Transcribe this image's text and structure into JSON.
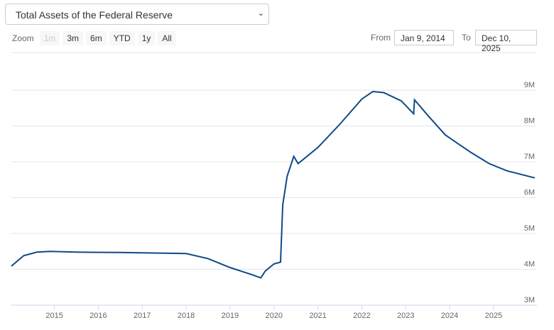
{
  "selector": {
    "value": "Total Assets of the Federal Reserve"
  },
  "zoom": {
    "label": "Zoom",
    "buttons": [
      "1m",
      "3m",
      "6m",
      "YTD",
      "1y",
      "All"
    ]
  },
  "range": {
    "from_label": "From",
    "from": "Jan 9, 2014",
    "to_label": "To",
    "to": "Dec 10, 2025"
  },
  "colors": {
    "line": "#0d4a87",
    "grid": "#e6e6e6"
  },
  "chart_data": {
    "type": "line",
    "title": "Total Assets of the Federal Reserve",
    "xlim": [
      2014.02,
      2025.94
    ],
    "ylim": [
      3,
      9.6
    ],
    "x_ticks": [
      "2015",
      "2016",
      "2017",
      "2018",
      "2019",
      "2020",
      "2021",
      "2022",
      "2023",
      "2024",
      "2025"
    ],
    "y_ticks": [
      "3M",
      "4M",
      "5M",
      "6M",
      "7M",
      "8M",
      "9M"
    ],
    "series": [
      {
        "name": "Total Assets",
        "x": [
          2014.02,
          2014.3,
          2014.6,
          2014.9,
          2015.5,
          2016.5,
          2017.5,
          2018.0,
          2018.5,
          2019.0,
          2019.5,
          2019.7,
          2019.8,
          2020.0,
          2020.15,
          2020.2,
          2020.3,
          2020.45,
          2020.55,
          2021.0,
          2021.5,
          2022.0,
          2022.25,
          2022.5,
          2022.9,
          2023.18,
          2023.2,
          2023.5,
          2023.9,
          2024.2,
          2024.5,
          2024.9,
          2025.3,
          2025.94
        ],
        "y": [
          4.09,
          4.38,
          4.48,
          4.5,
          4.48,
          4.47,
          4.45,
          4.44,
          4.3,
          4.05,
          3.85,
          3.76,
          3.95,
          4.15,
          4.2,
          5.8,
          6.6,
          7.15,
          6.95,
          7.4,
          8.05,
          8.75,
          8.96,
          8.93,
          8.7,
          8.34,
          8.73,
          8.3,
          7.75,
          7.5,
          7.25,
          6.95,
          6.75,
          6.55
        ]
      }
    ]
  }
}
